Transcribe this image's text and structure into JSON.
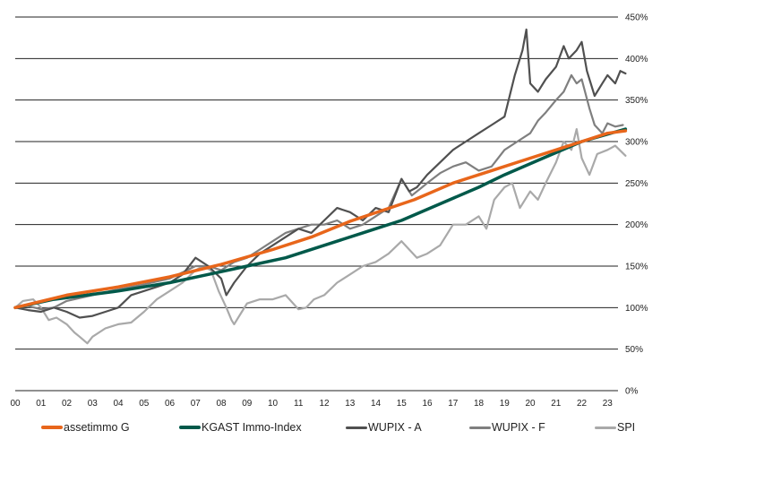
{
  "chart_data": {
    "type": "line",
    "title": "",
    "xlabel": "",
    "ylabel": "",
    "xlim": [
      0,
      23.8
    ],
    "ylim": [
      0,
      450
    ],
    "grid": true,
    "legend_placement": "bottom",
    "x_ticks": [
      "00",
      "01",
      "02",
      "03",
      "04",
      "05",
      "06",
      "07",
      "08",
      "09",
      "10",
      "11",
      "12",
      "13",
      "14",
      "15",
      "16",
      "17",
      "18",
      "19",
      "20",
      "21",
      "22",
      "23"
    ],
    "y_ticks": [
      "0%",
      "50%",
      "100%",
      "150%",
      "200%",
      "250%",
      "300%",
      "350%",
      "400%",
      "450%"
    ],
    "series": [
      {
        "name": "SPI",
        "color": "#A9A9A9",
        "width": 2.2,
        "x": [
          0,
          0.3,
          0.7,
          1,
          1.3,
          1.6,
          2,
          2.3,
          2.5,
          2.8,
          3,
          3.5,
          4,
          4.5,
          5,
          5.5,
          6,
          6.5,
          7,
          7.3,
          7.6,
          7.9,
          8.2,
          8.4,
          8.5,
          8.8,
          9,
          9.5,
          10,
          10.5,
          11,
          11.3,
          11.6,
          12,
          12.5,
          13,
          13.5,
          14,
          14.5,
          15,
          15.3,
          15.6,
          16,
          16.5,
          17,
          17.5,
          18,
          18.3,
          18.6,
          19,
          19.3,
          19.6,
          20,
          20.3,
          20.6,
          21,
          21.3,
          21.6,
          21.8,
          22,
          22.3,
          22.6,
          23,
          23.3,
          23.7
        ],
        "y": [
          100,
          108,
          110,
          100,
          85,
          88,
          80,
          70,
          65,
          57,
          65,
          75,
          80,
          82,
          95,
          110,
          120,
          130,
          145,
          150,
          145,
          120,
          100,
          85,
          80,
          95,
          105,
          110,
          110,
          115,
          98,
          100,
          110,
          115,
          130,
          140,
          150,
          155,
          165,
          180,
          170,
          160,
          165,
          175,
          200,
          200,
          210,
          195,
          230,
          245,
          250,
          220,
          240,
          230,
          250,
          275,
          300,
          290,
          315,
          280,
          260,
          285,
          290,
          295,
          283
        ]
      },
      {
        "name": "WUPIX - F",
        "color": "#7F7F7F",
        "width": 2.2,
        "x": [
          0,
          0.5,
          1,
          1.5,
          2,
          3,
          4,
          5,
          6,
          7,
          7.5,
          8,
          8.5,
          9,
          9.5,
          10,
          10.5,
          11,
          11.5,
          12,
          12.5,
          13,
          13.5,
          14,
          14.5,
          15,
          15.4,
          15.8,
          16,
          16.5,
          17,
          17.5,
          18,
          18.5,
          19,
          19.5,
          20,
          20.3,
          20.6,
          21,
          21.3,
          21.6,
          21.8,
          22,
          22.3,
          22.5,
          22.8,
          23,
          23.3,
          23.6
        ],
        "y": [
          100,
          102,
          98,
          100,
          108,
          115,
          122,
          128,
          135,
          150,
          150,
          145,
          155,
          160,
          170,
          180,
          190,
          195,
          200,
          200,
          205,
          195,
          200,
          210,
          220,
          255,
          235,
          245,
          250,
          262,
          270,
          275,
          265,
          270,
          290,
          300,
          310,
          325,
          335,
          350,
          360,
          380,
          370,
          375,
          340,
          320,
          310,
          322,
          318,
          320
        ]
      },
      {
        "name": "WUPIX - A",
        "color": "#505050",
        "width": 2.2,
        "x": [
          0,
          0.5,
          1,
          1.5,
          2,
          2.5,
          3,
          3.5,
          4,
          4.5,
          5,
          5.5,
          6,
          6.5,
          7,
          7.5,
          8,
          8.2,
          8.5,
          9,
          9.5,
          10,
          10.5,
          11,
          11.5,
          12,
          12.5,
          13,
          13.5,
          14,
          14.5,
          15,
          15.3,
          15.6,
          16,
          16.5,
          17,
          17.5,
          18,
          18.5,
          19,
          19.4,
          19.7,
          19.85,
          20,
          20.3,
          20.6,
          21,
          21.3,
          21.5,
          21.8,
          22,
          22.2,
          22.5,
          22.8,
          23,
          23.3,
          23.5,
          23.7
        ],
        "y": [
          100,
          97,
          95,
          100,
          95,
          88,
          90,
          95,
          100,
          115,
          120,
          125,
          130,
          140,
          160,
          150,
          135,
          115,
          130,
          150,
          165,
          175,
          185,
          195,
          190,
          205,
          220,
          215,
          205,
          220,
          215,
          255,
          240,
          245,
          260,
          275,
          290,
          300,
          310,
          320,
          330,
          380,
          410,
          435,
          370,
          360,
          375,
          390,
          415,
          400,
          410,
          420,
          385,
          355,
          370,
          380,
          370,
          385,
          382
        ]
      },
      {
        "name": "KGAST Immo-Index",
        "color": "#00594A",
        "width": 3.5,
        "x": [
          0,
          1.5,
          4,
          6,
          7.5,
          9,
          10.5,
          12,
          13.5,
          15,
          16.5,
          18,
          19,
          20.5,
          22,
          23.7
        ],
        "y": [
          100,
          110,
          120,
          130,
          140,
          150,
          160,
          175,
          190,
          205,
          225,
          245,
          260,
          280,
          300,
          315
        ]
      },
      {
        "name": "assetimmo G",
        "color": "#E8661B",
        "width": 3.5,
        "x": [
          0,
          2,
          4,
          6,
          8,
          10,
          11.5,
          13,
          15.5,
          17,
          18.5,
          20,
          21,
          22,
          23,
          23.7
        ],
        "y": [
          100,
          115,
          125,
          137,
          152,
          170,
          185,
          204,
          230,
          250,
          265,
          280,
          290,
          300,
          310,
          313
        ]
      }
    ]
  },
  "legend": [
    {
      "label": "assetimmo G",
      "color": "#E8661B"
    },
    {
      "label": "KGAST Immo-Index",
      "color": "#00594A"
    },
    {
      "label": "WUPIX - A",
      "color": "#505050"
    },
    {
      "label": "WUPIX - F",
      "color": "#7F7F7F"
    },
    {
      "label": "SPI",
      "color": "#A9A9A9"
    }
  ]
}
